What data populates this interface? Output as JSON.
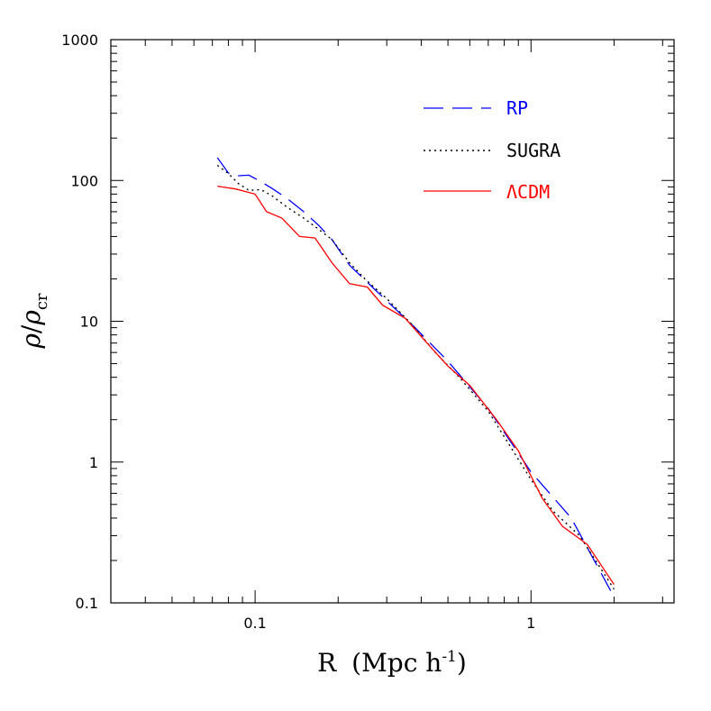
{
  "chart_data": {
    "type": "line",
    "xscale": "log",
    "yscale": "log",
    "xlim": [
      0.03,
      3.3
    ],
    "ylim": [
      0.1,
      1000
    ],
    "xlabel": {
      "main": "R",
      "units": "(Mpc h",
      "exp": "-1",
      "close": ")"
    },
    "ylabel": {
      "rho": "ρ",
      "slash": "/",
      "rho2": "ρ",
      "sub": "cr"
    },
    "x_tick_labels": [
      {
        "value": 0.1,
        "label": "0.1"
      },
      {
        "value": 1,
        "label": "1"
      }
    ],
    "y_tick_labels": [
      {
        "value": 0.1,
        "label": "0.1"
      },
      {
        "value": 1,
        "label": "1"
      },
      {
        "value": 10,
        "label": "10"
      },
      {
        "value": 100,
        "label": "100"
      },
      {
        "value": 1000,
        "label": "1000"
      }
    ],
    "legend_position": "top-right",
    "series": [
      {
        "name": "RP",
        "color": "#0000ff",
        "dash": "dashed",
        "x": [
          0.073,
          0.08,
          0.087,
          0.095,
          0.105,
          0.115,
          0.13,
          0.15,
          0.17,
          0.19,
          0.22,
          0.27,
          0.3,
          0.38,
          0.5,
          0.7,
          1.0,
          1.4,
          2.0
        ],
        "y": [
          145,
          113,
          108,
          109,
          98,
          88,
          75,
          60,
          48,
          38,
          25,
          17,
          14,
          9,
          5.2,
          2.4,
          0.85,
          0.4,
          0.11
        ]
      },
      {
        "name": "SUGRA",
        "color": "#000000",
        "dash": "dotted",
        "x": [
          0.073,
          0.08,
          0.087,
          0.095,
          0.105,
          0.115,
          0.13,
          0.15,
          0.17,
          0.19,
          0.22,
          0.25,
          0.3,
          0.37,
          0.45,
          0.55,
          0.7,
          1.0,
          1.2,
          1.5,
          2.0
        ],
        "y": [
          128,
          112,
          95,
          85,
          86,
          78,
          65,
          54,
          45,
          38,
          26,
          20,
          14.5,
          9.5,
          6.0,
          4.0,
          2.3,
          0.75,
          0.45,
          0.3,
          0.125
        ]
      },
      {
        "name": "ΛCDM",
        "color": "#ff0000",
        "dash": "solid",
        "x": [
          0.073,
          0.085,
          0.1,
          0.11,
          0.125,
          0.145,
          0.165,
          0.19,
          0.22,
          0.255,
          0.29,
          0.35,
          0.42,
          0.5,
          0.6,
          0.75,
          0.9,
          1.1,
          1.3,
          1.6,
          2.0
        ],
        "y": [
          91,
          87,
          80,
          60,
          54,
          40,
          39,
          26,
          18.5,
          17.5,
          13,
          10.5,
          7,
          4.8,
          3.5,
          2.0,
          1.2,
          0.55,
          0.35,
          0.26,
          0.135
        ]
      }
    ]
  }
}
